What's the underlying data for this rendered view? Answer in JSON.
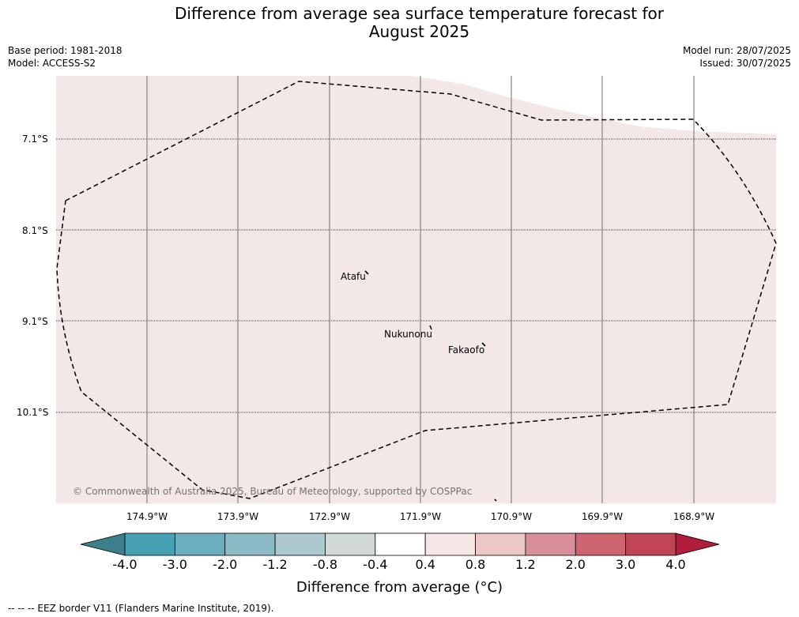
{
  "title": {
    "line1": "Difference from average sea surface temperature forecast for",
    "line2": "August 2025"
  },
  "meta": {
    "base_period": "Base period: 1981-2018",
    "model": "Model: ACCESS-S2",
    "model_run": "Model run: 28/07/2025",
    "issued": "Issued: 30/07/2025"
  },
  "map": {
    "fill_color": "#f4e8e6",
    "latitude_labels": [
      "7.1°S",
      "8.1°S",
      "9.1°S",
      "10.1°S"
    ],
    "longitude_labels": [
      "174.9°W",
      "173.9°W",
      "172.9°W",
      "171.9°W",
      "170.9°W",
      "169.9°W",
      "168.9°W"
    ],
    "places": [
      {
        "name": "Atafu"
      },
      {
        "name": "Nukunonu"
      },
      {
        "name": "Fakaofo"
      }
    ],
    "copyright": "© Commonwealth of Australia 2025, Bureau of Meteorology, supported by COSPPac"
  },
  "colorbar": {
    "title": "Difference from average (°C)",
    "ticks": [
      "-4.0",
      "-3.0",
      "-2.0",
      "-1.2",
      "-0.8",
      "-0.4",
      "0.4",
      "0.8",
      "1.2",
      "2.0",
      "3.0",
      "4.0"
    ],
    "colors": [
      "#46a1b3",
      "#6bafbe",
      "#8dbbc5",
      "#abc9ce",
      "#d0d8d8",
      "#ffffff",
      "#f6e6e5",
      "#ebc8c6",
      "#d9909a",
      "#cd6570",
      "#c04655"
    ],
    "under_color": "#3c7f8c",
    "over_color": "#b01e3b"
  },
  "footer": "--  --  -- EEZ border V11 (Flanders Marine Institute, 2019)."
}
